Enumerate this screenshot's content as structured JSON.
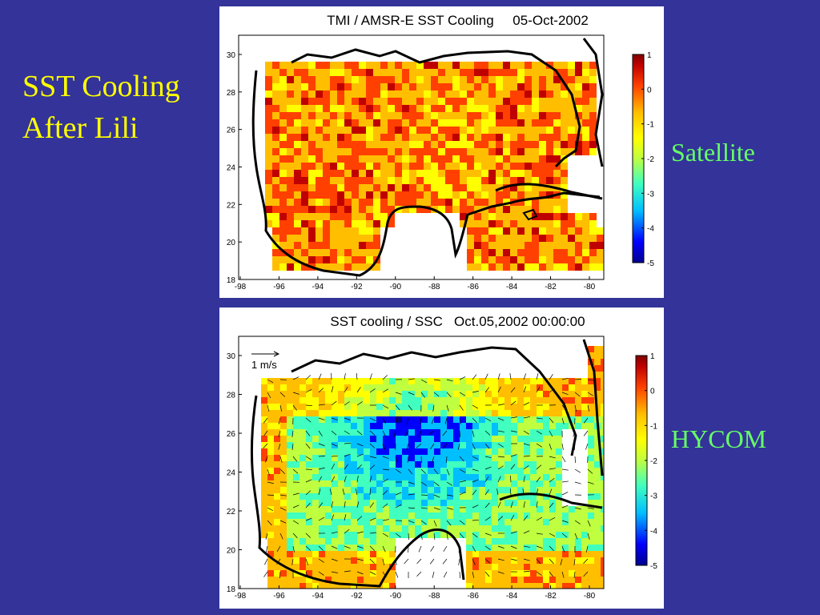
{
  "slide": {
    "title_line1": "SST Cooling",
    "title_line2": "After Lili",
    "labels": [
      "Satellite",
      "HYCOM"
    ]
  },
  "colors": {
    "background": "#333399",
    "title": "#ffff00",
    "labels": "#66ff66",
    "colormap": [
      "#00008f",
      "#0000ff",
      "#00bfff",
      "#40ffbf",
      "#bfff40",
      "#ffff00",
      "#ffbf00",
      "#ff4000",
      "#bf0000",
      "#800000"
    ]
  },
  "panels": [
    {
      "title": "TMI / AMSR-E SST Cooling     05-Oct-2002",
      "x_ticks": [
        "-98",
        "-96",
        "-94",
        "-92",
        "-90",
        "-88",
        "-86",
        "-84",
        "-82",
        "-80"
      ],
      "y_ticks": [
        "30",
        "28",
        "26",
        "24",
        "22",
        "20",
        "18"
      ],
      "colorbar_ticks": [
        "1",
        "0",
        "-1",
        "-2",
        "-3",
        "-4",
        "-5"
      ],
      "colorbar_range": [
        -5,
        1
      ]
    },
    {
      "title": "SST cooling / SSC   Oct.05,2002 00:00:00",
      "x_ticks": [
        "-98",
        "-96",
        "-94",
        "-92",
        "-90",
        "-88",
        "-86",
        "-84",
        "-82",
        "-80"
      ],
      "y_ticks": [
        "30",
        "28",
        "26",
        "24",
        "22",
        "20",
        "18"
      ],
      "colorbar_ticks": [
        "1",
        "0",
        "-1",
        "-2",
        "-3",
        "-4",
        "-5"
      ],
      "colorbar_range": [
        -5,
        1
      ],
      "vector_scale_label": "1 m/s"
    }
  ]
}
